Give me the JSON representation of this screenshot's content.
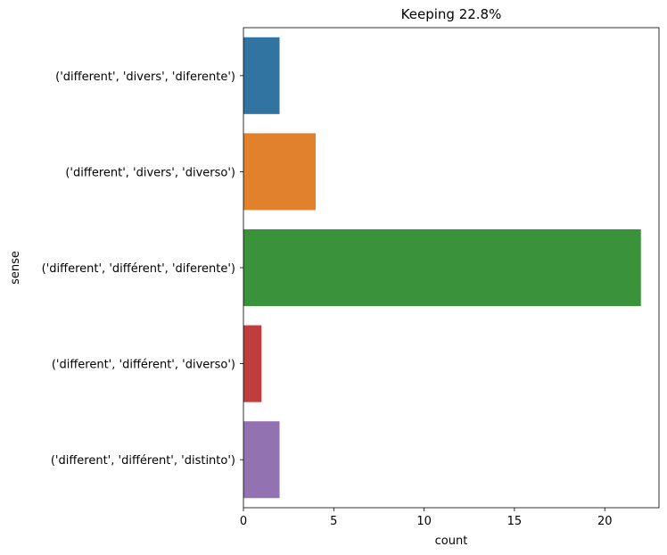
{
  "chart_data": {
    "type": "bar",
    "orientation": "horizontal",
    "title": "Keeping 22.8%",
    "xlabel": "count",
    "ylabel": "sense",
    "categories": [
      "('different', 'divers', 'diferente')",
      "('different', 'divers', 'diverso')",
      "('different', 'différent', 'diferente')",
      "('different', 'différent', 'diverso')",
      "('different', 'différent', 'distinto')"
    ],
    "values": [
      2,
      4,
      22,
      1,
      2
    ],
    "colors": [
      "#3274a1",
      "#e1812c",
      "#3a923a",
      "#c03d3e",
      "#9372b2"
    ],
    "xlim": [
      0,
      23
    ],
    "xticks": [
      0,
      5,
      10,
      15,
      20
    ],
    "xtick_labels": [
      "0",
      "5",
      "10",
      "15",
      "20"
    ],
    "grid": false,
    "legend": "none"
  }
}
